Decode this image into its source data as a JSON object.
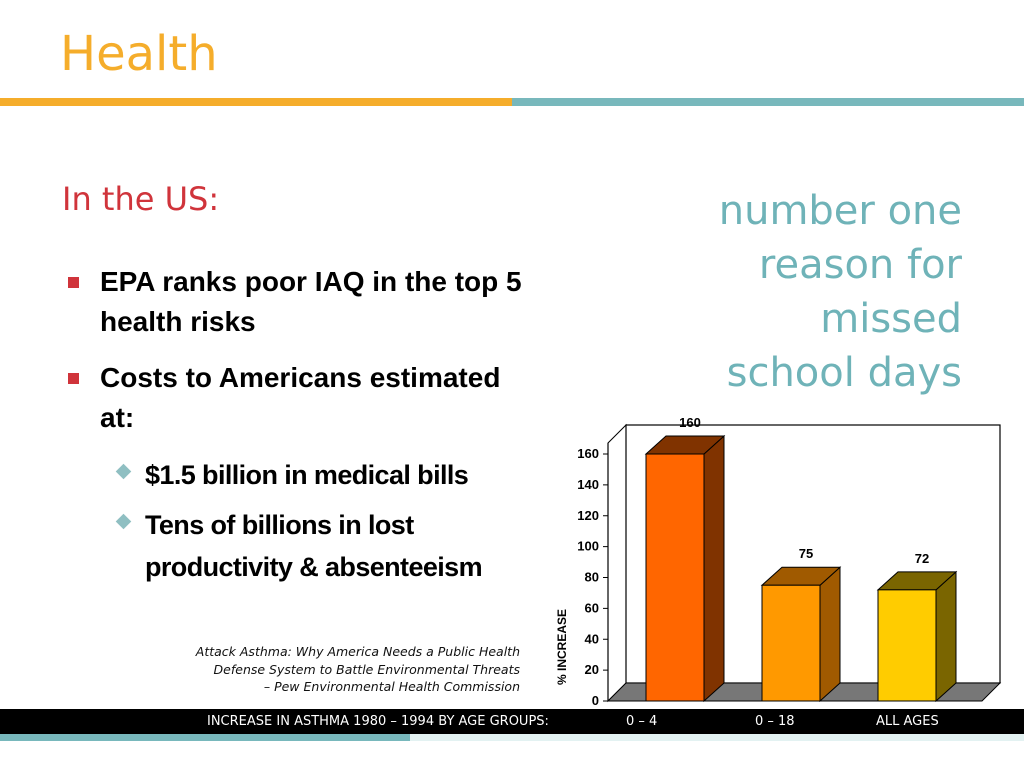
{
  "slide": {
    "title": "Health",
    "subtitle": "In the US:",
    "callout_lines": [
      "number one",
      "reason for",
      "missed",
      "school days"
    ]
  },
  "bullets": [
    {
      "text": "EPA ranks poor IAQ in the top 5 health risks"
    },
    {
      "text": "Costs to Americans estimated at:"
    }
  ],
  "sub_bullets": [
    {
      "text": "$1.5 billion in medical bills"
    },
    {
      "text": "Tens of billions in lost productivity & absenteeism"
    }
  ],
  "citation": {
    "lines": [
      "Attack Asthma: Why America Needs a Public Health",
      "Defense System to Battle Environmental Threats",
      "– Pew Environmental Health Commission"
    ]
  },
  "bottom_bar": {
    "caption": "INCREASE IN ASTHMA 1980 – 1994 BY AGE GROUPS:",
    "groups": [
      "0 – 4",
      "0 – 18",
      "ALL AGES"
    ]
  },
  "colors": {
    "title": "#f5ad2b",
    "subtitle": "#d0343b",
    "callout": "#6fb3b8",
    "rule_orange": "#f5ad2b",
    "rule_teal": "#78b8bc"
  },
  "chart_data": {
    "type": "bar",
    "categories": [
      "0 – 4",
      "0 – 18",
      "ALL AGES"
    ],
    "values": [
      160,
      75,
      72
    ],
    "data_labels": [
      "160",
      "75",
      "72"
    ],
    "bar_colors": [
      "#ff6600",
      "#ff9900",
      "#ffcc00"
    ],
    "bar_side_colors": [
      "#803300",
      "#a05a00",
      "#7a6500"
    ],
    "ylabel": "% INCREASE",
    "ylim": [
      0,
      160
    ],
    "yticks": [
      "0",
      "20",
      "40",
      "60",
      "80",
      "100",
      "120",
      "140",
      "160"
    ],
    "grid": false,
    "legend": "none",
    "style": "3d"
  }
}
